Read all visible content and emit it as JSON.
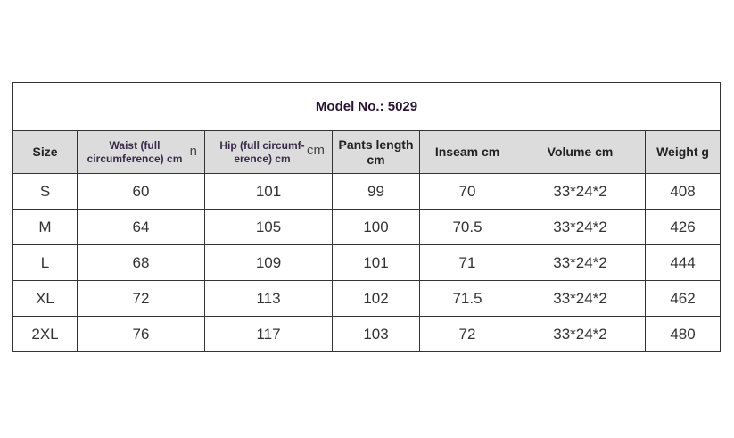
{
  "table": {
    "title": "Model No.: 5029",
    "headers": {
      "size": "Size",
      "waist": "Waist (full circumference) cm",
      "waist_overlap": "n",
      "hip": "Hip (full circumf-erence) cm",
      "hip_overlap": "cm",
      "pants_length": "Pants length cm",
      "inseam": "Inseam cm",
      "volume": "Volume cm",
      "weight": "Weight g"
    },
    "rows": [
      {
        "size": "S",
        "waist": "60",
        "hip": "101",
        "pants_length": "99",
        "inseam": "70",
        "volume": "33*24*2",
        "weight": "408"
      },
      {
        "size": "M",
        "waist": "64",
        "hip": "105",
        "pants_length": "100",
        "inseam": "70.5",
        "volume": "33*24*2",
        "weight": "426"
      },
      {
        "size": "L",
        "waist": "68",
        "hip": "109",
        "pants_length": "101",
        "inseam": "71",
        "volume": "33*24*2",
        "weight": "444"
      },
      {
        "size": "XL",
        "waist": "72",
        "hip": "113",
        "pants_length": "102",
        "inseam": "71.5",
        "volume": "33*24*2",
        "weight": "462"
      },
      {
        "size": "2XL",
        "waist": "76",
        "hip": "117",
        "pants_length": "103",
        "inseam": "72",
        "volume": "33*24*2",
        "weight": "480"
      }
    ]
  }
}
